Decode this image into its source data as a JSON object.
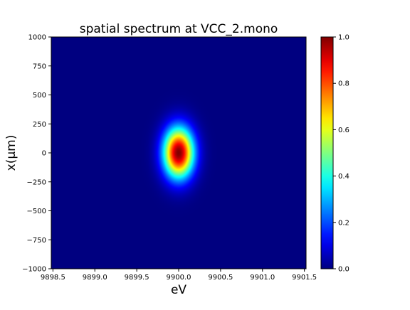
{
  "chart_data": {
    "type": "heatmap",
    "title": "spatial spectrum at VCC_2.mono",
    "xlabel": "eV",
    "ylabel": "x(μm)",
    "xlim": [
      9898.48,
      9901.52
    ],
    "ylim": [
      -1000,
      1000
    ],
    "x_ticks": [
      9898.5,
      9899.0,
      9899.5,
      9900.0,
      9900.5,
      9901.0,
      9901.5
    ],
    "x_tick_labels": [
      "9898.5",
      "9899.0",
      "9899.5",
      "9900.0",
      "9900.5",
      "9901.0",
      "9901.5"
    ],
    "y_ticks": [
      1000,
      750,
      500,
      250,
      0,
      -250,
      -500,
      -750,
      -1000
    ],
    "y_tick_labels": [
      "1000",
      "750",
      "500",
      "250",
      "0",
      "−250",
      "−500",
      "−750",
      "−1000"
    ],
    "colormap": "jet",
    "colorbar": {
      "range": [
        0.0,
        1.0
      ],
      "ticks": [
        1.0,
        0.8,
        0.6,
        0.4,
        0.2,
        0.0
      ],
      "tick_labels": [
        "1.0",
        "0.8",
        "0.6",
        "0.4",
        "0.2",
        "0.0"
      ]
    },
    "peak": {
      "x": 9900.0,
      "y": 0,
      "value": 1.0,
      "sigma_x": 0.125,
      "sigma_y": 150
    },
    "grid": false
  }
}
